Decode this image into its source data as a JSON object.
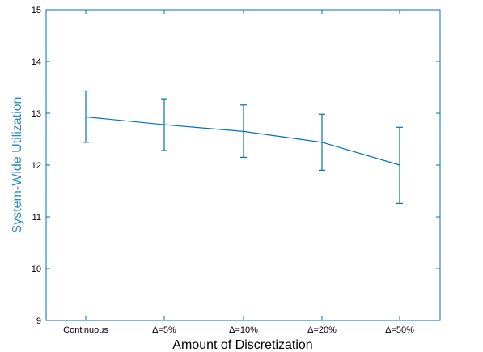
{
  "chart_data": {
    "type": "line",
    "xlabel": "Amount of Discretization",
    "ylabel": "System-Wide Utilization",
    "categories": [
      "Continuous",
      "Δ=5%",
      "Δ=10%",
      "Δ=20%",
      "Δ=50%"
    ],
    "series": [
      {
        "values": [
          12.93,
          12.78,
          12.65,
          12.44,
          12.0
        ],
        "error_low": [
          12.44,
          12.28,
          12.15,
          11.9,
          11.26
        ],
        "error_high": [
          13.43,
          13.28,
          13.16,
          12.98,
          12.73
        ]
      }
    ],
    "ylim": [
      9,
      15
    ],
    "yticks": [
      "9",
      "10",
      "11",
      "12",
      "13",
      "14",
      "15"
    ],
    "grid": false,
    "colors": {
      "series": "#0072bd",
      "axis": "#0072bd",
      "ylabel": "#2e8bc9",
      "xlabel": "#000000"
    }
  }
}
